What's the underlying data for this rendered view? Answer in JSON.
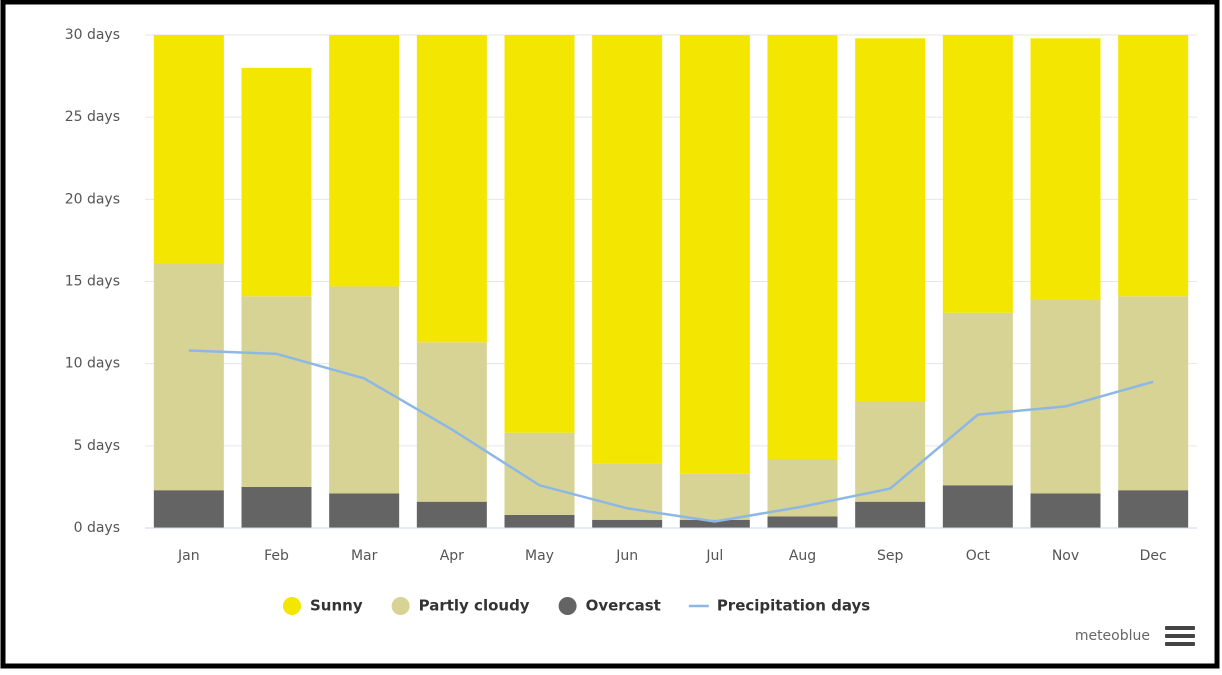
{
  "chart_data": {
    "type": "bar",
    "stacked": true,
    "categories": [
      "Jan",
      "Feb",
      "Mar",
      "Apr",
      "May",
      "Jun",
      "Jul",
      "Aug",
      "Sep",
      "Oct",
      "Nov",
      "Dec"
    ],
    "series": [
      {
        "name": "Overcast",
        "color": "#646464",
        "values": [
          2.3,
          2.5,
          2.1,
          1.6,
          0.8,
          0.5,
          0.5,
          0.7,
          1.6,
          2.6,
          2.1,
          2.3
        ]
      },
      {
        "name": "Partly cloudy",
        "color": "#d6d394",
        "values": [
          13.8,
          11.6,
          12.6,
          9.7,
          5.0,
          3.4,
          2.8,
          3.5,
          6.1,
          10.5,
          11.8,
          11.8
        ]
      },
      {
        "name": "Sunny",
        "color": "#f3e600",
        "values": [
          13.9,
          13.9,
          15.3,
          18.7,
          24.2,
          26.1,
          26.7,
          25.8,
          22.1,
          16.9,
          15.9,
          15.9
        ]
      },
      {
        "name": "Precipitation days",
        "type": "line",
        "color": "#8db8e6",
        "values": [
          10.8,
          10.6,
          9.1,
          6.0,
          2.6,
          1.2,
          0.4,
          1.3,
          2.4,
          6.9,
          7.4,
          8.9
        ]
      }
    ],
    "legend_order": [
      2,
      1,
      0,
      3
    ],
    "ylim": [
      0,
      30
    ],
    "yticks": [
      {
        "value": 0,
        "label": "0 days"
      },
      {
        "value": 5,
        "label": "5 days"
      },
      {
        "value": 10,
        "label": "10 days"
      },
      {
        "value": 15,
        "label": "15 days"
      },
      {
        "value": 20,
        "label": "20 days"
      },
      {
        "value": 25,
        "label": "25 days"
      },
      {
        "value": 30,
        "label": "30 days"
      }
    ],
    "grid": true,
    "credit": "meteoblue"
  }
}
